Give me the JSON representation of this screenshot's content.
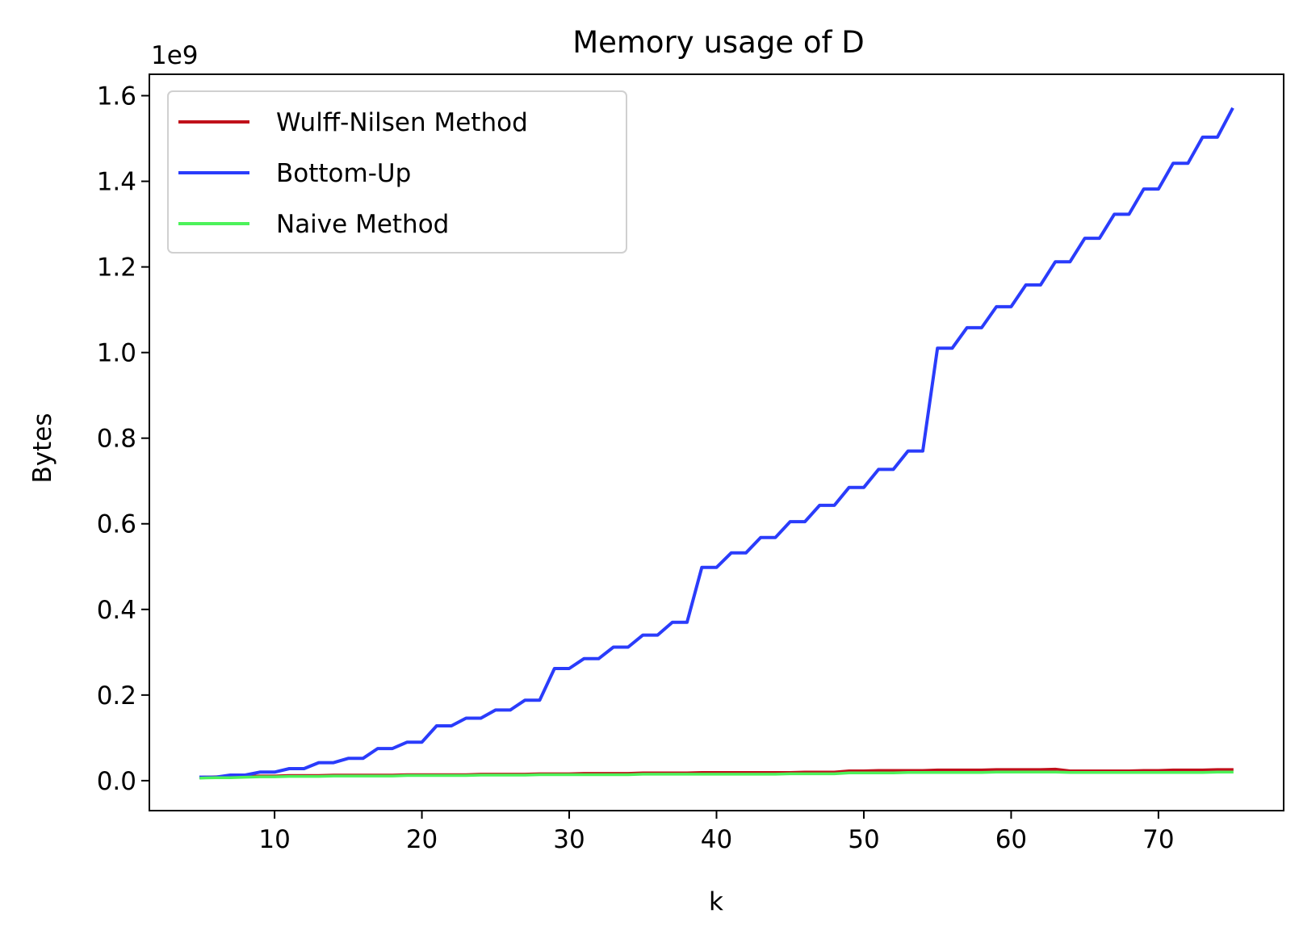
{
  "chart_data": {
    "type": "line",
    "title": "Memory usage of D",
    "xlabel": "k",
    "ylabel": "Bytes",
    "y_offset_label": "1e9",
    "xlim": [
      1.5,
      78.5
    ],
    "ylim": [
      -0.07,
      1.65
    ],
    "x_ticks": [
      10,
      20,
      30,
      40,
      50,
      60,
      70
    ],
    "x_tick_labels": [
      "10",
      "20",
      "30",
      "40",
      "50",
      "60",
      "70"
    ],
    "y_ticks": [
      0.0,
      0.2,
      0.4,
      0.6,
      0.8,
      1.0,
      1.2,
      1.4,
      1.6
    ],
    "y_tick_labels": [
      "0.0",
      "0.2",
      "0.4",
      "0.6",
      "0.8",
      "1.0",
      "1.2",
      "1.4",
      "1.6"
    ],
    "grid": false,
    "legend_position": "top-left",
    "x": [
      5,
      6,
      7,
      8,
      9,
      10,
      11,
      12,
      13,
      14,
      15,
      16,
      17,
      18,
      19,
      20,
      21,
      22,
      23,
      24,
      25,
      26,
      27,
      28,
      29,
      30,
      31,
      32,
      33,
      34,
      35,
      36,
      37,
      38,
      39,
      40,
      41,
      42,
      43,
      44,
      45,
      46,
      47,
      48,
      49,
      50,
      51,
      52,
      53,
      54,
      55,
      56,
      57,
      58,
      59,
      60,
      61,
      62,
      63,
      64,
      65,
      66,
      67,
      68,
      69,
      70,
      71,
      72,
      73,
      74,
      75
    ],
    "series": [
      {
        "name": "Wulff-Nilsen Method",
        "color": "#c0101a",
        "values": [
          0.008,
          0.009,
          0.009,
          0.01,
          0.011,
          0.011,
          0.012,
          0.012,
          0.012,
          0.013,
          0.013,
          0.013,
          0.013,
          0.013,
          0.014,
          0.014,
          0.014,
          0.014,
          0.014,
          0.015,
          0.015,
          0.015,
          0.015,
          0.016,
          0.016,
          0.016,
          0.017,
          0.017,
          0.017,
          0.017,
          0.018,
          0.018,
          0.018,
          0.018,
          0.019,
          0.019,
          0.019,
          0.019,
          0.019,
          0.019,
          0.019,
          0.02,
          0.02,
          0.02,
          0.023,
          0.023,
          0.024,
          0.024,
          0.024,
          0.024,
          0.025,
          0.025,
          0.025,
          0.025,
          0.026,
          0.026,
          0.026,
          0.026,
          0.027,
          0.023,
          0.023,
          0.023,
          0.023,
          0.023,
          0.024,
          0.024,
          0.025,
          0.025,
          0.025,
          0.026,
          0.026
        ]
      },
      {
        "name": "Bottom-Up",
        "color": "#2a3cfb",
        "values": [
          0.008,
          0.008,
          0.013,
          0.013,
          0.02,
          0.02,
          0.028,
          0.028,
          0.042,
          0.042,
          0.052,
          0.052,
          0.075,
          0.075,
          0.09,
          0.09,
          0.128,
          0.128,
          0.146,
          0.146,
          0.165,
          0.165,
          0.188,
          0.188,
          0.262,
          0.262,
          0.285,
          0.285,
          0.312,
          0.312,
          0.34,
          0.34,
          0.37,
          0.37,
          0.498,
          0.498,
          0.532,
          0.532,
          0.568,
          0.568,
          0.605,
          0.605,
          0.643,
          0.643,
          0.685,
          0.685,
          0.727,
          0.727,
          0.77,
          0.77,
          1.01,
          1.01,
          1.058,
          1.058,
          1.107,
          1.107,
          1.158,
          1.158,
          1.212,
          1.212,
          1.267,
          1.267,
          1.323,
          1.323,
          1.382,
          1.382,
          1.442,
          1.442,
          1.503,
          1.503,
          1.568
        ]
      },
      {
        "name": "Naive Method",
        "color": "#4cf25a",
        "values": [
          0.006,
          0.007,
          0.007,
          0.008,
          0.009,
          0.009,
          0.01,
          0.01,
          0.01,
          0.011,
          0.011,
          0.011,
          0.011,
          0.011,
          0.012,
          0.012,
          0.012,
          0.012,
          0.012,
          0.013,
          0.013,
          0.013,
          0.013,
          0.014,
          0.014,
          0.014,
          0.014,
          0.014,
          0.014,
          0.014,
          0.015,
          0.015,
          0.015,
          0.015,
          0.015,
          0.015,
          0.015,
          0.015,
          0.015,
          0.015,
          0.016,
          0.016,
          0.016,
          0.016,
          0.018,
          0.018,
          0.018,
          0.018,
          0.019,
          0.019,
          0.019,
          0.019,
          0.019,
          0.019,
          0.02,
          0.02,
          0.02,
          0.02,
          0.02,
          0.019,
          0.019,
          0.019,
          0.019,
          0.019,
          0.019,
          0.019,
          0.019,
          0.019,
          0.019,
          0.02,
          0.02
        ]
      }
    ]
  }
}
